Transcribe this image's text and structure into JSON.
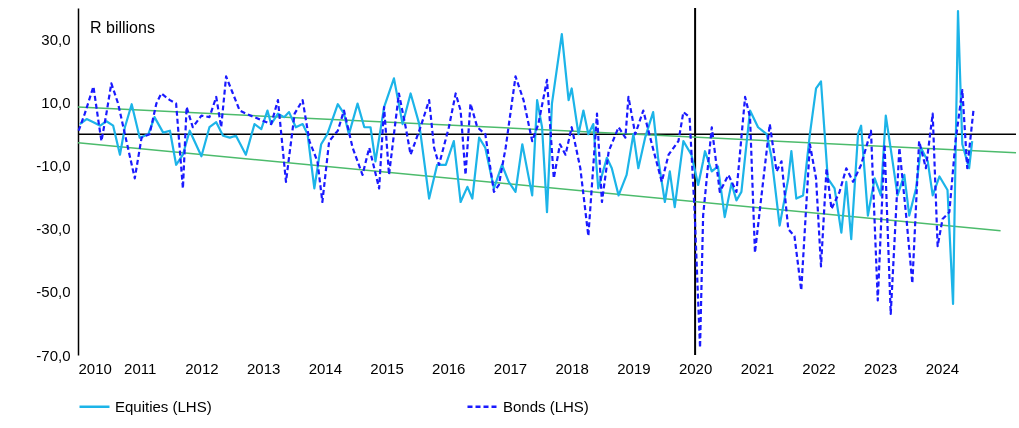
{
  "chart_data": {
    "type": "line",
    "annotations": [
      "R billions"
    ],
    "xlim": [
      2010,
      2025.2
    ],
    "xticks": [
      2010,
      2011,
      2012,
      2013,
      2014,
      2015,
      2016,
      2017,
      2018,
      2019,
      2020,
      2021,
      2022,
      2023,
      2024
    ],
    "ylim": [
      -70,
      40
    ],
    "yticks": [
      {
        "value": 30,
        "label": "30,0"
      },
      {
        "value": 10,
        "label": "10,0"
      },
      {
        "value": -10,
        "label": "-10,0"
      },
      {
        "value": -30,
        "label": "-30,0"
      },
      {
        "value": -50,
        "label": "-50,0"
      },
      {
        "value": -70,
        "label": "-70,0"
      }
    ],
    "grid": false,
    "legend": "bottom",
    "ref_lines": [
      {
        "axis": "y",
        "value": 0,
        "color": "#000000"
      },
      {
        "axis": "x",
        "value": 2020,
        "color": "#000000"
      }
    ],
    "series": [
      {
        "name": "Equities (LHS)",
        "color": "#1cb4e8",
        "line_style": "solid",
        "x": [
          2010.03,
          2010.14,
          2010.25,
          2010.36,
          2010.46,
          2010.57,
          2010.68,
          2010.76,
          2010.87,
          2011.0,
          2011.14,
          2011.24,
          2011.38,
          2011.49,
          2011.59,
          2011.7,
          2011.81,
          2012.0,
          2012.13,
          2012.24,
          2012.35,
          2012.46,
          2012.56,
          2012.72,
          2012.86,
          2012.97,
          2013.07,
          2013.13,
          2013.24,
          2013.34,
          2013.42,
          2013.53,
          2013.64,
          2013.72,
          2013.83,
          2013.94,
          2014.04,
          2014.21,
          2014.31,
          2014.39,
          2014.53,
          2014.64,
          2014.74,
          2014.82,
          2014.96,
          2015.12,
          2015.26,
          2015.39,
          2015.53,
          2015.69,
          2015.82,
          2015.96,
          2016.09,
          2016.2,
          2016.31,
          2016.39,
          2016.5,
          2016.6,
          2016.74,
          2016.87,
          2016.98,
          2017.09,
          2017.2,
          2017.36,
          2017.44,
          2017.52,
          2017.6,
          2017.68,
          2017.84,
          2017.95,
          2018.0,
          2018.11,
          2018.19,
          2018.27,
          2018.35,
          2018.43,
          2018.57,
          2018.65,
          2018.76,
          2018.89,
          2019.0,
          2019.08,
          2019.19,
          2019.32,
          2019.4,
          2019.51,
          2019.59,
          2019.67,
          2019.81,
          2019.94,
          2020.05,
          2020.13,
          2020.16,
          2020.27,
          2020.37,
          2020.48,
          2020.59,
          2020.67,
          2020.75,
          2020.89,
          2021.02,
          2021.16,
          2021.24,
          2021.37,
          2021.51,
          2021.56,
          2021.64,
          2021.75,
          2021.86,
          2021.96,
          2022.04,
          2022.15,
          2022.26,
          2022.37,
          2022.45,
          2022.53,
          2022.64,
          2022.69,
          2022.8,
          2022.91,
          2023.01,
          2023.09,
          2023.2,
          2023.28,
          2023.39,
          2023.47,
          2023.58,
          2023.66,
          2023.77,
          2023.85,
          2023.96,
          2024.09,
          2024.18,
          2024.26,
          2024.33,
          2024.44,
          2024.49
        ],
        "values": [
          3.2,
          4.8,
          3.8,
          2.7,
          4.1,
          2.7,
          -6.5,
          2.2,
          9.5,
          -1.1,
          0,
          5.4,
          0.5,
          1.1,
          -9.7,
          -6.5,
          1.1,
          -7.0,
          2.2,
          3.8,
          -0.5,
          -1.1,
          -0.5,
          -6.5,
          3.2,
          1.6,
          7.5,
          3.2,
          6.5,
          5.4,
          7.0,
          2.2,
          3.2,
          0,
          -17.2,
          -3.2,
          0,
          9.5,
          6.5,
          0,
          9.7,
          2.2,
          2.2,
          -8.6,
          8.6,
          17.7,
          3.2,
          12.9,
          3.2,
          -20.4,
          -9.7,
          -9.7,
          -2.2,
          -21.5,
          -16.7,
          -20.4,
          -1.1,
          -4.3,
          -17.2,
          -9.7,
          -15.1,
          -18.3,
          -3.2,
          -19.4,
          10.8,
          2.2,
          -24.7,
          9.7,
          31.7,
          10.8,
          14.5,
          0,
          7.5,
          0,
          3.2,
          -17.2,
          -7.5,
          -10.8,
          -19.4,
          -12.9,
          0,
          -10.8,
          -1.1,
          7.0,
          -7.5,
          -21.5,
          -11.8,
          -23.1,
          -2.2,
          -6.5,
          -16.1,
          -8.6,
          -5.4,
          -11.8,
          -10.2,
          -26.3,
          -15.6,
          -21.0,
          -18.3,
          7.5,
          2.2,
          0,
          -7.5,
          -29.0,
          -14.0,
          -5.4,
          -20.4,
          -19.4,
          0,
          14.5,
          16.7,
          -14.0,
          -17.2,
          -31.2,
          -15.1,
          -33.3,
          0,
          2.7,
          -25.8,
          -14.0,
          -19.4,
          5.9,
          -8.6,
          -19.4,
          -12.9,
          -25.8,
          -17.2,
          -4.3,
          -8.6,
          -19.4,
          -13.4,
          -17.7,
          -53.8,
          39,
          -3.2,
          -10.8,
          -2.2
        ]
      },
      {
        "name": "Bonds (LHS)",
        "color": "#1a1aff",
        "line_style": "dashed",
        "x": [
          2010.01,
          2010.11,
          2010.25,
          2010.33,
          2010.38,
          2010.46,
          2010.54,
          2010.65,
          2010.76,
          2010.92,
          2011.03,
          2011.16,
          2011.27,
          2011.35,
          2011.49,
          2011.59,
          2011.7,
          2011.76,
          2011.86,
          2012.0,
          2012.13,
          2012.24,
          2012.32,
          2012.4,
          2012.51,
          2012.62,
          2012.72,
          2012.86,
          2012.99,
          2013.13,
          2013.24,
          2013.37,
          2013.51,
          2013.64,
          2013.75,
          2013.88,
          2013.96,
          2014.07,
          2014.21,
          2014.31,
          2014.45,
          2014.61,
          2014.72,
          2014.88,
          2014.96,
          2015.04,
          2015.2,
          2015.31,
          2015.39,
          2015.55,
          2015.69,
          2015.77,
          2015.85,
          2016.01,
          2016.12,
          2016.2,
          2016.28,
          2016.36,
          2016.47,
          2016.6,
          2016.74,
          2016.82,
          2016.93,
          2017.09,
          2017.22,
          2017.36,
          2017.46,
          2017.6,
          2017.71,
          2017.81,
          2017.9,
          2018.0,
          2018.14,
          2018.27,
          2018.41,
          2018.49,
          2018.6,
          2018.76,
          2018.87,
          2018.92,
          2019.03,
          2019.16,
          2019.3,
          2019.46,
          2019.57,
          2019.73,
          2019.81,
          2019.91,
          2019.99,
          2020.08,
          2020.13,
          2020.27,
          2020.4,
          2020.54,
          2020.67,
          2020.81,
          2020.89,
          2020.97,
          2021.07,
          2021.21,
          2021.32,
          2021.4,
          2021.51,
          2021.61,
          2021.72,
          2021.86,
          2021.96,
          2022.04,
          2022.13,
          2022.21,
          2022.34,
          2022.45,
          2022.56,
          2022.69,
          2022.85,
          2022.96,
          2023.07,
          2023.17,
          2023.31,
          2023.42,
          2023.52,
          2023.63,
          2023.74,
          2023.85,
          2023.93,
          2024.01,
          2024.12,
          2024.22,
          2024.33,
          2024.41,
          2024.51
        ],
        "values": [
          1.1,
          6.5,
          15.1,
          4.3,
          -2.2,
          6.5,
          16.1,
          9.7,
          0,
          -14.0,
          -1.1,
          0,
          9.7,
          12.9,
          10.8,
          9.7,
          -17.2,
          8.6,
          2.2,
          5.9,
          5.4,
          11.8,
          2.2,
          18.3,
          12.9,
          7.5,
          6.5,
          5.4,
          4.3,
          3.2,
          10.8,
          -15.1,
          6.5,
          10.8,
          -2.2,
          -8.6,
          -21.5,
          -2.2,
          1.1,
          7.5,
          -4.3,
          -12.9,
          -4.3,
          -17.2,
          8.6,
          -12.9,
          12.9,
          2.2,
          -6.5,
          2.2,
          10.8,
          -4.3,
          -9.7,
          2.2,
          12.9,
          7.5,
          -12.9,
          9.7,
          2.2,
          0,
          -18.3,
          -16.1,
          -4.3,
          18.3,
          10.8,
          -2.2,
          3.2,
          17.2,
          -14.0,
          -3.2,
          -6.5,
          2.2,
          -10.8,
          -32.3,
          6.5,
          -21.5,
          -5.4,
          2.2,
          -1.1,
          11.8,
          0,
          7.5,
          -3.2,
          -15.1,
          -6.5,
          -2.2,
          7.0,
          5.4,
          -23.7,
          -67.7,
          -25.8,
          2.2,
          -18.3,
          -12.9,
          -18.3,
          11.8,
          5.4,
          -37.6,
          -20.4,
          3.2,
          -11.8,
          -8.6,
          -30.1,
          -32.3,
          -49.5,
          -3.2,
          -14.0,
          -41.9,
          -10.8,
          -23.7,
          -18.3,
          -10.8,
          -15.1,
          -9.7,
          1.1,
          -52.7,
          -3.2,
          -57.0,
          -4.3,
          -25.8,
          -47.3,
          -2.2,
          -10.8,
          6.5,
          -35.5,
          -26.9,
          -24.7,
          -2.2,
          14.0,
          -10.8,
          7.5
        ]
      },
      {
        "type": "line",
        "color": "#4cbb6c",
        "line_style": "solid",
        "x": [
          2010,
          2025.2
        ],
        "values": [
          8.6,
          -5.9
        ]
      },
      {
        "type": "line",
        "color": "#4cbb6c",
        "line_style": "solid",
        "x": [
          2010,
          2024.95
        ],
        "values": [
          -2.7,
          -30.6
        ]
      }
    ]
  }
}
